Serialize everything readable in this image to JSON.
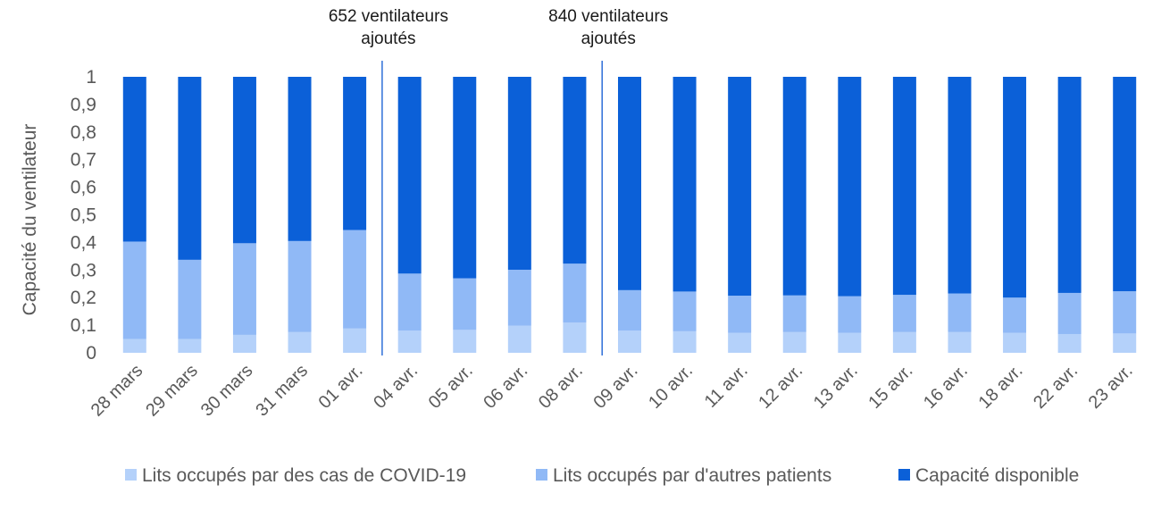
{
  "chart_data": {
    "type": "bar",
    "stacked": true,
    "ylabel": "Capacité du ventilateur",
    "ylim": [
      0,
      1
    ],
    "yticks": [
      "0",
      "0,1",
      "0,2",
      "0,3",
      "0,4",
      "0,5",
      "0,6",
      "0,7",
      "0,8",
      "0,9",
      "1"
    ],
    "categories": [
      "28 mars",
      "29 mars",
      "30 mars",
      "31 mars",
      "01 avr.",
      "04 avr.",
      "05 avr.",
      "06 avr.",
      "08 avr.",
      "09 avr.",
      "10 avr.",
      "11 avr.",
      "12 avr.",
      "13 avr.",
      "15 avr.",
      "16 avr.",
      "18 avr.",
      "22 avr.",
      "23 avr."
    ],
    "series": [
      {
        "name": "Lits occupés par des cas de COVID-19",
        "color": "#b4d1fa",
        "values": [
          0.05,
          0.05,
          0.065,
          0.075,
          0.088,
          0.08,
          0.083,
          0.098,
          0.11,
          0.08,
          0.078,
          0.072,
          0.075,
          0.072,
          0.075,
          0.075,
          0.072,
          0.068,
          0.07
        ]
      },
      {
        "name": "Lits occupés par d'autres patients",
        "color": "#90b9f6",
        "values": [
          0.353,
          0.287,
          0.332,
          0.33,
          0.357,
          0.207,
          0.187,
          0.203,
          0.213,
          0.147,
          0.144,
          0.135,
          0.133,
          0.133,
          0.135,
          0.14,
          0.128,
          0.149,
          0.153
        ]
      },
      {
        "name": "Capacité disponible",
        "color": "#0b60d8",
        "values": [
          0.597,
          0.663,
          0.603,
          0.595,
          0.555,
          0.713,
          0.73,
          0.699,
          0.677,
          0.773,
          0.778,
          0.793,
          0.792,
          0.795,
          0.79,
          0.785,
          0.8,
          0.783,
          0.777
        ]
      }
    ],
    "annotations": [
      {
        "after_category": "01 avr.",
        "lines": [
          "652 ventilateurs",
          "ajoutés"
        ]
      },
      {
        "after_category": "08 avr.",
        "lines": [
          "840 ventilateurs",
          "ajoutés"
        ]
      }
    ],
    "legend_position": "bottom",
    "grid": false
  }
}
